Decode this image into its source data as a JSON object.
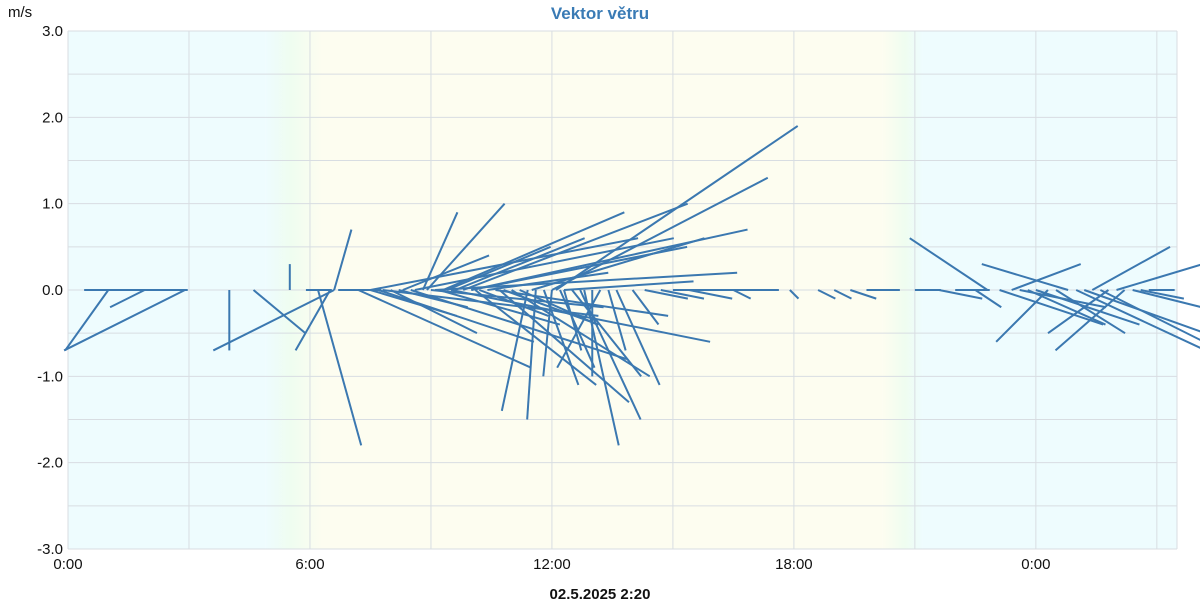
{
  "chart_data": {
    "type": "line",
    "title": "Vektor větru",
    "ylabel": "m/s",
    "ylim": [
      -3.0,
      3.0
    ],
    "yticks": [
      "3.0",
      "2.0",
      "1.0",
      "0.0",
      "-1.0",
      "-2.0",
      "-3.0"
    ],
    "ytick_values": [
      3.0,
      2.0,
      1.0,
      0.0,
      -1.0,
      -2.0,
      -3.0
    ],
    "x_range_hours": [
      0,
      27.5
    ],
    "xticks": [
      "0:00",
      "6:00",
      "12:00",
      "18:00",
      "0:00"
    ],
    "xtick_hours": [
      0,
      6,
      12,
      18,
      24
    ],
    "subtitle": "02.5.2025 2:20",
    "grid": true,
    "background_bands": [
      {
        "from": 0.0,
        "to": 4.9,
        "color": "#eefcfe"
      },
      {
        "from": 4.9,
        "to": 6.3,
        "color_from": "#eefcfe",
        "color_to": "#fdfdf0"
      },
      {
        "from": 6.3,
        "to": 20.2,
        "color": "#fdfdf0"
      },
      {
        "from": 20.2,
        "to": 21.2,
        "color_from": "#fdfdf0",
        "color_to": "#eefcfe"
      },
      {
        "from": 21.2,
        "to": 27.5,
        "color": "#eefcfe"
      }
    ],
    "series_color": "#3b78b0",
    "vectors": [
      {
        "t": 0.4,
        "u": 1.2,
        "v": 0.0
      },
      {
        "t": 1.0,
        "u": -0.5,
        "v": -0.7
      },
      {
        "t": 1.9,
        "u": -0.4,
        "v": -0.2
      },
      {
        "t": 2.9,
        "u": -1.4,
        "v": -0.7
      },
      {
        "t": 4.0,
        "u": 0.0,
        "v": -0.7
      },
      {
        "t": 4.6,
        "u": 0.6,
        "v": -0.5
      },
      {
        "t": 5.5,
        "u": 0.0,
        "v": 0.3
      },
      {
        "t": 5.9,
        "u": 0.3,
        "v": 0.0
      },
      {
        "t": 6.5,
        "u": -0.4,
        "v": -0.7
      },
      {
        "t": 6.2,
        "u": 0.5,
        "v": -1.8
      },
      {
        "t": 6.6,
        "u": 0.2,
        "v": 0.7
      },
      {
        "t": 6.6,
        "u": -1.4,
        "v": -0.7
      },
      {
        "t": 6.7,
        "u": 0.5,
        "v": 0.0
      },
      {
        "t": 7.2,
        "u": 2.0,
        "v": -0.9
      },
      {
        "t": 7.5,
        "u": 1.0,
        "v": -0.3
      },
      {
        "t": 7.5,
        "u": 3.1,
        "v": 0.6
      },
      {
        "t": 7.7,
        "u": 1.8,
        "v": -0.6
      },
      {
        "t": 7.8,
        "u": 2.5,
        "v": -0.3
      },
      {
        "t": 8.0,
        "u": 1.0,
        "v": -0.5
      },
      {
        "t": 8.2,
        "u": 0.8,
        "v": -0.2
      },
      {
        "t": 8.5,
        "u": 2.5,
        "v": -0.8
      },
      {
        "t": 8.3,
        "u": 1.0,
        "v": 0.4
      },
      {
        "t": 8.8,
        "u": 0.4,
        "v": 0.9
      },
      {
        "t": 8.6,
        "u": 3.0,
        "v": 0.6
      },
      {
        "t": 9.0,
        "u": 2.0,
        "v": -0.2
      },
      {
        "t": 8.9,
        "u": 0.9,
        "v": 1.0
      },
      {
        "t": 9.1,
        "u": 3.5,
        "v": 0.2
      },
      {
        "t": 9.2,
        "u": 1.4,
        "v": -0.4
      },
      {
        "t": 9.3,
        "u": 2.1,
        "v": 0.9
      },
      {
        "t": 9.4,
        "u": 1.2,
        "v": 0.5
      },
      {
        "t": 9.5,
        "u": 3.0,
        "v": -0.6
      },
      {
        "t": 9.6,
        "u": 1.5,
        "v": 0.6
      },
      {
        "t": 9.8,
        "u": 2.6,
        "v": 1.0
      },
      {
        "t": 10.0,
        "u": 2.5,
        "v": 0.5
      },
      {
        "t": 10.0,
        "u": 3.2,
        "v": 0.7
      },
      {
        "t": 10.2,
        "u": 0.8,
        "v": -0.3
      },
      {
        "t": 10.4,
        "u": 1.4,
        "v": 0.2
      },
      {
        "t": 10.1,
        "u": 1.4,
        "v": -1.1
      },
      {
        "t": 10.6,
        "u": 2.0,
        "v": -0.3
      },
      {
        "t": 10.8,
        "u": 1.1,
        "v": -0.4
      },
      {
        "t": 11.0,
        "u": 1.6,
        "v": -1.0
      },
      {
        "t": 10.7,
        "u": 1.5,
        "v": -1.3
      },
      {
        "t": 11.2,
        "u": 0.9,
        "v": -0.4
      },
      {
        "t": 11.4,
        "u": -0.3,
        "v": -1.4
      },
      {
        "t": 11.6,
        "u": -0.1,
        "v": -1.5
      },
      {
        "t": 11.8,
        "u": 0.4,
        "v": -1.1
      },
      {
        "t": 12.0,
        "u": -0.1,
        "v": -1.0
      },
      {
        "t": 12.2,
        "u": 0.4,
        "v": -0.9
      },
      {
        "t": 12.3,
        "u": 0.2,
        "v": -0.7
      },
      {
        "t": 12.5,
        "u": 0.8,
        "v": -1.0
      },
      {
        "t": 12.7,
        "u": 0.7,
        "v": -1.5
      },
      {
        "t": 12.8,
        "u": 0.4,
        "v": -1.8
      },
      {
        "t": 13.0,
        "u": 0.0,
        "v": -1.0
      },
      {
        "t": 13.2,
        "u": -0.5,
        "v": -0.9
      },
      {
        "t": 13.4,
        "u": 0.2,
        "v": -0.7
      },
      {
        "t": 13.6,
        "u": 0.5,
        "v": -1.1
      },
      {
        "t": 12.1,
        "u": 2.8,
        "v": 1.9
      },
      {
        "t": 12.0,
        "u": 2.5,
        "v": 1.3
      },
      {
        "t": 11.5,
        "u": 2.0,
        "v": 0.6
      },
      {
        "t": 12.3,
        "u": 1.5,
        "v": 0.1
      },
      {
        "t": 14.0,
        "u": 0.3,
        "v": -0.4
      },
      {
        "t": 14.3,
        "u": 0.5,
        "v": -0.1
      },
      {
        "t": 14.7,
        "u": 0.5,
        "v": -0.1
      },
      {
        "t": 15.0,
        "u": 0.6,
        "v": 0.0
      },
      {
        "t": 15.4,
        "u": 0.5,
        "v": -0.1
      },
      {
        "t": 16.2,
        "u": 0.3,
        "v": 0.0
      },
      {
        "t": 16.5,
        "u": 0.2,
        "v": -0.1
      },
      {
        "t": 16.8,
        "u": 0.2,
        "v": 0.0
      },
      {
        "t": 17.2,
        "u": 0.2,
        "v": 0.0
      },
      {
        "t": 17.9,
        "u": 0.1,
        "v": -0.1
      },
      {
        "t": 18.6,
        "u": 0.2,
        "v": -0.1
      },
      {
        "t": 19.0,
        "u": 0.2,
        "v": -0.1
      },
      {
        "t": 19.4,
        "u": 0.3,
        "v": -0.1
      },
      {
        "t": 19.8,
        "u": 0.2,
        "v": 0.0
      },
      {
        "t": 20.2,
        "u": 0.2,
        "v": 0.0
      },
      {
        "t": 21.0,
        "u": 0.3,
        "v": 0.0
      },
      {
        "t": 21.6,
        "u": 0.5,
        "v": -0.1
      },
      {
        "t": 22.0,
        "u": 0.4,
        "v": 0.0
      },
      {
        "t": 22.5,
        "u": 0.3,
        "v": -0.2
      },
      {
        "t": 22.8,
        "u": -0.9,
        "v": 0.6
      },
      {
        "t": 23.1,
        "u": 1.2,
        "v": -0.4
      },
      {
        "t": 23.4,
        "u": 0.8,
        "v": 0.3
      },
      {
        "t": 23.6,
        "u": 1.0,
        "v": -0.2
      },
      {
        "t": 23.8,
        "u": 0.9,
        "v": -0.4
      },
      {
        "t": 24.0,
        "u": 1.2,
        "v": -0.4
      },
      {
        "t": 24.3,
        "u": -0.6,
        "v": -0.6
      },
      {
        "t": 24.5,
        "u": 0.8,
        "v": -0.5
      },
      {
        "t": 24.8,
        "u": -1.0,
        "v": 0.3
      },
      {
        "t": 25.0,
        "u": 1.5,
        "v": -0.7
      },
      {
        "t": 25.2,
        "u": 1.4,
        "v": -0.5
      },
      {
        "t": 25.4,
        "u": 0.9,
        "v": 0.5
      },
      {
        "t": 25.6,
        "u": 1.2,
        "v": -0.6
      },
      {
        "t": 25.8,
        "u": -0.7,
        "v": -0.5
      },
      {
        "t": 26.0,
        "u": 1.0,
        "v": 0.3
      },
      {
        "t": 26.2,
        "u": -0.8,
        "v": -0.7
      },
      {
        "t": 26.4,
        "u": 0.8,
        "v": -0.2
      },
      {
        "t": 26.6,
        "u": 0.5,
        "v": -0.1
      },
      {
        "t": 26.8,
        "u": 0.3,
        "v": 0.0
      }
    ]
  }
}
